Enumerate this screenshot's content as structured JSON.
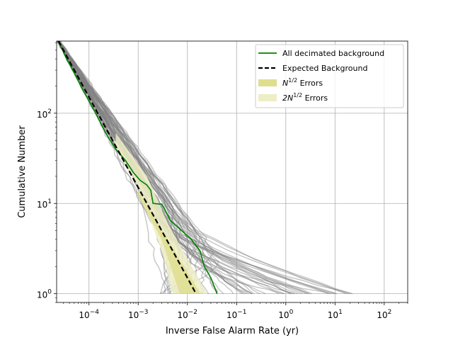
{
  "chart_data": {
    "type": "line",
    "title": "",
    "xlabel": "Inverse False Alarm Rate (yr)",
    "ylabel": "Cumulative Number",
    "xscale": "log",
    "yscale": "log",
    "xlim": [
      2.2e-05,
      300
    ],
    "ylim": [
      0.8,
      630
    ],
    "grid": true,
    "legend_position": "top-right",
    "x_ticks": [
      {
        "value": 0.0001,
        "base": "10",
        "exp": "−4"
      },
      {
        "value": 0.001,
        "base": "10",
        "exp": "−3"
      },
      {
        "value": 0.01,
        "base": "10",
        "exp": "−2"
      },
      {
        "value": 0.1,
        "base": "10",
        "exp": "−1"
      },
      {
        "value": 1,
        "base": "10",
        "exp": "0"
      },
      {
        "value": 10,
        "base": "10",
        "exp": "1"
      },
      {
        "value": 100,
        "base": "10",
        "exp": "2"
      }
    ],
    "y_ticks": [
      {
        "value": 1,
        "base": "10",
        "exp": "0"
      },
      {
        "value": 10,
        "base": "10",
        "exp": "1"
      },
      {
        "value": 100,
        "base": "10",
        "exp": "2"
      }
    ],
    "legend": [
      {
        "label": "All decimated background",
        "kind": "line",
        "color": "#008000"
      },
      {
        "label": "Expected Background",
        "kind": "dashed",
        "color": "#000000"
      },
      {
        "label_base": "N",
        "label_sup": "1/2",
        "label_rest": " Errors",
        "kind": "patch",
        "color": "#dede8f"
      },
      {
        "label_base": "2N",
        "label_sup": "1/2",
        "label_rest": " Errors",
        "kind": "patch",
        "color": "#eeeec6"
      }
    ],
    "series": [
      {
        "name": "All decimated background",
        "color": "#008000",
        "points": [
          [
            2.4e-05,
            630
          ],
          [
            3.5e-05,
            400
          ],
          [
            5e-05,
            280
          ],
          [
            8e-05,
            170
          ],
          [
            0.00013,
            105
          ],
          [
            0.00022,
            60
          ],
          [
            0.00035,
            40
          ],
          [
            0.00055,
            30
          ],
          [
            0.0008,
            22
          ],
          [
            0.0011,
            18
          ],
          [
            0.0015,
            16
          ],
          [
            0.0018,
            14
          ],
          [
            0.002,
            10
          ],
          [
            0.003,
            9.8
          ],
          [
            0.0035,
            8.5
          ],
          [
            0.0045,
            6.5
          ],
          [
            0.007,
            5.2
          ],
          [
            0.012,
            4
          ],
          [
            0.018,
            3
          ],
          [
            0.022,
            2
          ],
          [
            0.03,
            1.5
          ],
          [
            0.04,
            1
          ]
        ]
      },
      {
        "name": "Expected Background",
        "color": "#000000",
        "points": [
          [
            2.4e-05,
            630
          ],
          [
            0.015,
            1
          ]
        ]
      }
    ],
    "background_bundle": {
      "count": 60,
      "color": "#808080",
      "top": [
        2.4e-05,
        630
      ],
      "end_x_min": 0.003,
      "end_x_max": 25,
      "end_y": 1
    },
    "error_bands": [
      {
        "name": "2N^1/2 Errors",
        "color": "#eeeec6",
        "points_lower": [
          [
            0.00035,
            40
          ],
          [
            0.001,
            15
          ],
          [
            0.003,
            3
          ],
          [
            0.005,
            1
          ]
        ],
        "points_upper": [
          [
            0.00035,
            60
          ],
          [
            0.0015,
            20
          ],
          [
            0.004,
            6
          ],
          [
            0.025,
            1
          ]
        ]
      },
      {
        "name": "N^1/2 Errors",
        "color": "#dede8f",
        "points_lower": [
          [
            0.001,
            12
          ],
          [
            0.003,
            4
          ],
          [
            0.007,
            1
          ]
        ],
        "points_upper": [
          [
            0.001,
            14
          ],
          [
            0.004,
            4
          ],
          [
            0.018,
            1
          ]
        ]
      }
    ]
  }
}
